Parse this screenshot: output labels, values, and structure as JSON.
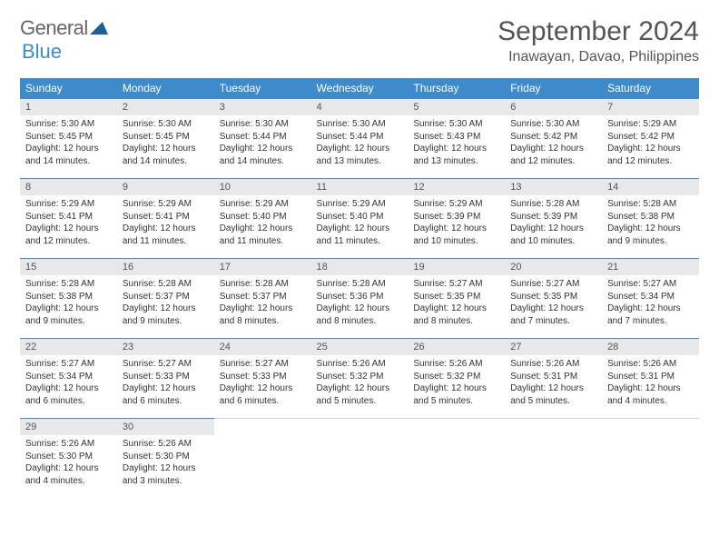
{
  "logo": {
    "general": "General",
    "blue": "Blue"
  },
  "title": "September 2024",
  "location": "Inawayan, Davao, Philippines",
  "colors": {
    "accent": "#3d8bcb",
    "daynum_bg": "#e8e8e8",
    "text": "#333"
  },
  "day_headers": [
    "Sunday",
    "Monday",
    "Tuesday",
    "Wednesday",
    "Thursday",
    "Friday",
    "Saturday"
  ],
  "days": [
    {
      "n": "1",
      "sr": "Sunrise: 5:30 AM",
      "ss": "Sunset: 5:45 PM",
      "dl1": "Daylight: 12 hours",
      "dl2": "and 14 minutes."
    },
    {
      "n": "2",
      "sr": "Sunrise: 5:30 AM",
      "ss": "Sunset: 5:45 PM",
      "dl1": "Daylight: 12 hours",
      "dl2": "and 14 minutes."
    },
    {
      "n": "3",
      "sr": "Sunrise: 5:30 AM",
      "ss": "Sunset: 5:44 PM",
      "dl1": "Daylight: 12 hours",
      "dl2": "and 14 minutes."
    },
    {
      "n": "4",
      "sr": "Sunrise: 5:30 AM",
      "ss": "Sunset: 5:44 PM",
      "dl1": "Daylight: 12 hours",
      "dl2": "and 13 minutes."
    },
    {
      "n": "5",
      "sr": "Sunrise: 5:30 AM",
      "ss": "Sunset: 5:43 PM",
      "dl1": "Daylight: 12 hours",
      "dl2": "and 13 minutes."
    },
    {
      "n": "6",
      "sr": "Sunrise: 5:30 AM",
      "ss": "Sunset: 5:42 PM",
      "dl1": "Daylight: 12 hours",
      "dl2": "and 12 minutes."
    },
    {
      "n": "7",
      "sr": "Sunrise: 5:29 AM",
      "ss": "Sunset: 5:42 PM",
      "dl1": "Daylight: 12 hours",
      "dl2": "and 12 minutes."
    },
    {
      "n": "8",
      "sr": "Sunrise: 5:29 AM",
      "ss": "Sunset: 5:41 PM",
      "dl1": "Daylight: 12 hours",
      "dl2": "and 12 minutes."
    },
    {
      "n": "9",
      "sr": "Sunrise: 5:29 AM",
      "ss": "Sunset: 5:41 PM",
      "dl1": "Daylight: 12 hours",
      "dl2": "and 11 minutes."
    },
    {
      "n": "10",
      "sr": "Sunrise: 5:29 AM",
      "ss": "Sunset: 5:40 PM",
      "dl1": "Daylight: 12 hours",
      "dl2": "and 11 minutes."
    },
    {
      "n": "11",
      "sr": "Sunrise: 5:29 AM",
      "ss": "Sunset: 5:40 PM",
      "dl1": "Daylight: 12 hours",
      "dl2": "and 11 minutes."
    },
    {
      "n": "12",
      "sr": "Sunrise: 5:29 AM",
      "ss": "Sunset: 5:39 PM",
      "dl1": "Daylight: 12 hours",
      "dl2": "and 10 minutes."
    },
    {
      "n": "13",
      "sr": "Sunrise: 5:28 AM",
      "ss": "Sunset: 5:39 PM",
      "dl1": "Daylight: 12 hours",
      "dl2": "and 10 minutes."
    },
    {
      "n": "14",
      "sr": "Sunrise: 5:28 AM",
      "ss": "Sunset: 5:38 PM",
      "dl1": "Daylight: 12 hours",
      "dl2": "and 9 minutes."
    },
    {
      "n": "15",
      "sr": "Sunrise: 5:28 AM",
      "ss": "Sunset: 5:38 PM",
      "dl1": "Daylight: 12 hours",
      "dl2": "and 9 minutes."
    },
    {
      "n": "16",
      "sr": "Sunrise: 5:28 AM",
      "ss": "Sunset: 5:37 PM",
      "dl1": "Daylight: 12 hours",
      "dl2": "and 9 minutes."
    },
    {
      "n": "17",
      "sr": "Sunrise: 5:28 AM",
      "ss": "Sunset: 5:37 PM",
      "dl1": "Daylight: 12 hours",
      "dl2": "and 8 minutes."
    },
    {
      "n": "18",
      "sr": "Sunrise: 5:28 AM",
      "ss": "Sunset: 5:36 PM",
      "dl1": "Daylight: 12 hours",
      "dl2": "and 8 minutes."
    },
    {
      "n": "19",
      "sr": "Sunrise: 5:27 AM",
      "ss": "Sunset: 5:35 PM",
      "dl1": "Daylight: 12 hours",
      "dl2": "and 8 minutes."
    },
    {
      "n": "20",
      "sr": "Sunrise: 5:27 AM",
      "ss": "Sunset: 5:35 PM",
      "dl1": "Daylight: 12 hours",
      "dl2": "and 7 minutes."
    },
    {
      "n": "21",
      "sr": "Sunrise: 5:27 AM",
      "ss": "Sunset: 5:34 PM",
      "dl1": "Daylight: 12 hours",
      "dl2": "and 7 minutes."
    },
    {
      "n": "22",
      "sr": "Sunrise: 5:27 AM",
      "ss": "Sunset: 5:34 PM",
      "dl1": "Daylight: 12 hours",
      "dl2": "and 6 minutes."
    },
    {
      "n": "23",
      "sr": "Sunrise: 5:27 AM",
      "ss": "Sunset: 5:33 PM",
      "dl1": "Daylight: 12 hours",
      "dl2": "and 6 minutes."
    },
    {
      "n": "24",
      "sr": "Sunrise: 5:27 AM",
      "ss": "Sunset: 5:33 PM",
      "dl1": "Daylight: 12 hours",
      "dl2": "and 6 minutes."
    },
    {
      "n": "25",
      "sr": "Sunrise: 5:26 AM",
      "ss": "Sunset: 5:32 PM",
      "dl1": "Daylight: 12 hours",
      "dl2": "and 5 minutes."
    },
    {
      "n": "26",
      "sr": "Sunrise: 5:26 AM",
      "ss": "Sunset: 5:32 PM",
      "dl1": "Daylight: 12 hours",
      "dl2": "and 5 minutes."
    },
    {
      "n": "27",
      "sr": "Sunrise: 5:26 AM",
      "ss": "Sunset: 5:31 PM",
      "dl1": "Daylight: 12 hours",
      "dl2": "and 5 minutes."
    },
    {
      "n": "28",
      "sr": "Sunrise: 5:26 AM",
      "ss": "Sunset: 5:31 PM",
      "dl1": "Daylight: 12 hours",
      "dl2": "and 4 minutes."
    },
    {
      "n": "29",
      "sr": "Sunrise: 5:26 AM",
      "ss": "Sunset: 5:30 PM",
      "dl1": "Daylight: 12 hours",
      "dl2": "and 4 minutes."
    },
    {
      "n": "30",
      "sr": "Sunrise: 5:26 AM",
      "ss": "Sunset: 5:30 PM",
      "dl1": "Daylight: 12 hours",
      "dl2": "and 3 minutes."
    }
  ]
}
